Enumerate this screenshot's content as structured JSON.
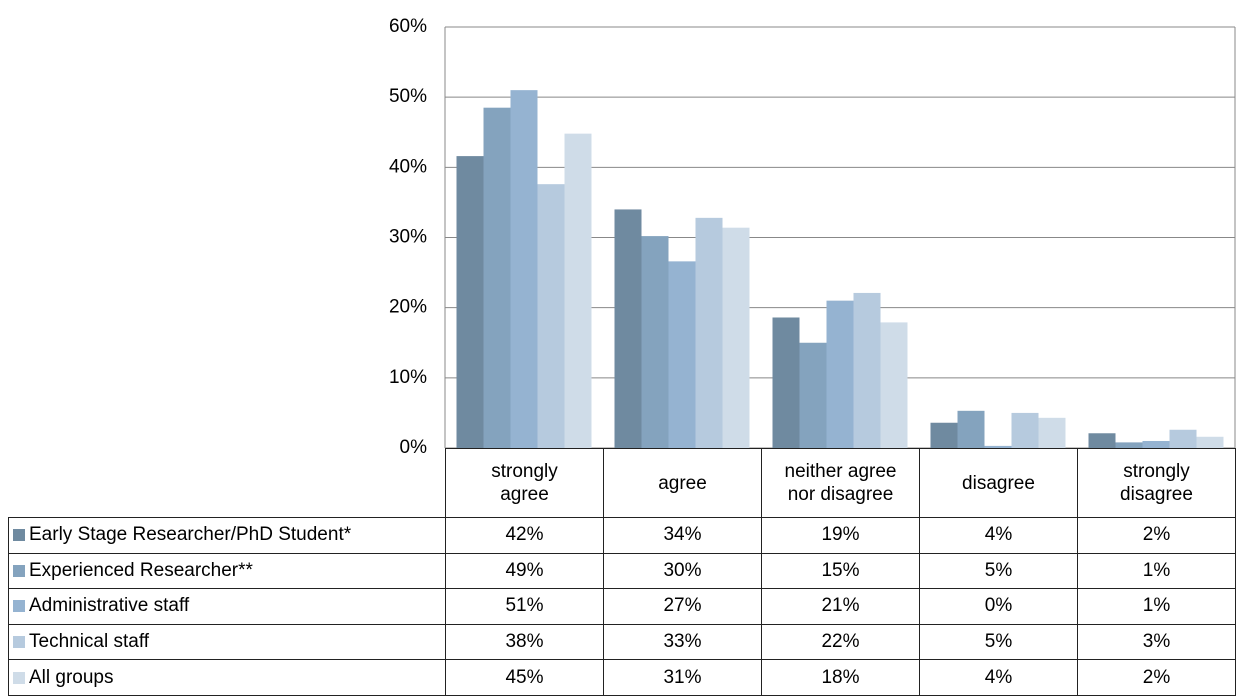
{
  "chart_data": {
    "type": "bar",
    "categories": [
      "strongly agree",
      "agree",
      "neither agree nor disagree",
      "disagree",
      "strongly disagree"
    ],
    "series": [
      {
        "name": "Early Stage Researcher/PhD Student*",
        "color": "#6f8aa0",
        "values": [
          41.6,
          34,
          18.6,
          3.6,
          2.1
        ],
        "value_labels": [
          "42%",
          "34%",
          "19%",
          "4%",
          "2%"
        ]
      },
      {
        "name": "Experienced Researcher**",
        "color": "#84a3be",
        "values": [
          48.5,
          30.2,
          15,
          5.3,
          0.8
        ],
        "value_labels": [
          "49%",
          "30%",
          "15%",
          "5%",
          "1%"
        ]
      },
      {
        "name": "Administrative staff",
        "color": "#95b3d1",
        "values": [
          51,
          26.6,
          21,
          0.3,
          1
        ],
        "value_labels": [
          "51%",
          "27%",
          "21%",
          "0%",
          "1%"
        ]
      },
      {
        "name": "Technical staff",
        "color": "#b6cade",
        "values": [
          37.6,
          32.8,
          22.1,
          5,
          2.6
        ],
        "value_labels": [
          "38%",
          "33%",
          "22%",
          "5%",
          "3%"
        ]
      },
      {
        "name": "All groups",
        "color": "#cfdce8",
        "values": [
          44.8,
          31.4,
          17.9,
          4.3,
          1.6
        ],
        "value_labels": [
          "45%",
          "31%",
          "18%",
          "4%",
          "2%"
        ]
      }
    ],
    "ylim": [
      0,
      60
    ],
    "yticks": [
      {
        "value": 0,
        "label": "0%"
      },
      {
        "value": 10,
        "label": "10%"
      },
      {
        "value": 20,
        "label": "20%"
      },
      {
        "value": 30,
        "label": "30%"
      },
      {
        "value": 40,
        "label": "40%"
      },
      {
        "value": 50,
        "label": "50%"
      },
      {
        "value": 60,
        "label": "60%"
      }
    ],
    "grid": true
  }
}
